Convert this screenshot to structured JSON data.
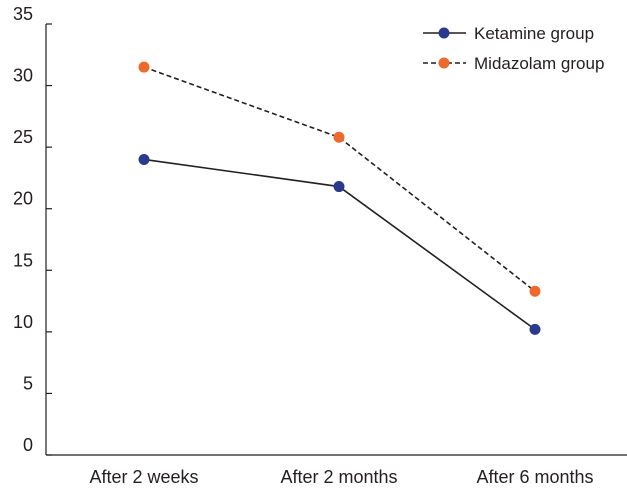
{
  "chart_data": {
    "type": "line",
    "title": "",
    "xlabel": "",
    "ylabel": "",
    "categories": [
      "After 2 weeks",
      "After 2 months",
      "After 6 months"
    ],
    "ylim": [
      0,
      35
    ],
    "yticks": [
      0,
      5,
      10,
      15,
      20,
      25,
      30,
      35
    ],
    "grid": false,
    "legend_position": "top-right",
    "series": [
      {
        "name": "Ketamine group",
        "values": [
          24,
          21.8,
          10.2
        ],
        "color": "#2b3a8c",
        "line_style": "solid",
        "line_color": "#231f20",
        "marker": "circle"
      },
      {
        "name": "Midazolam group",
        "values": [
          31.5,
          25.8,
          13.3
        ],
        "color": "#ee6a2c",
        "line_style": "dashed",
        "line_color": "#231f20",
        "marker": "circle"
      }
    ]
  }
}
